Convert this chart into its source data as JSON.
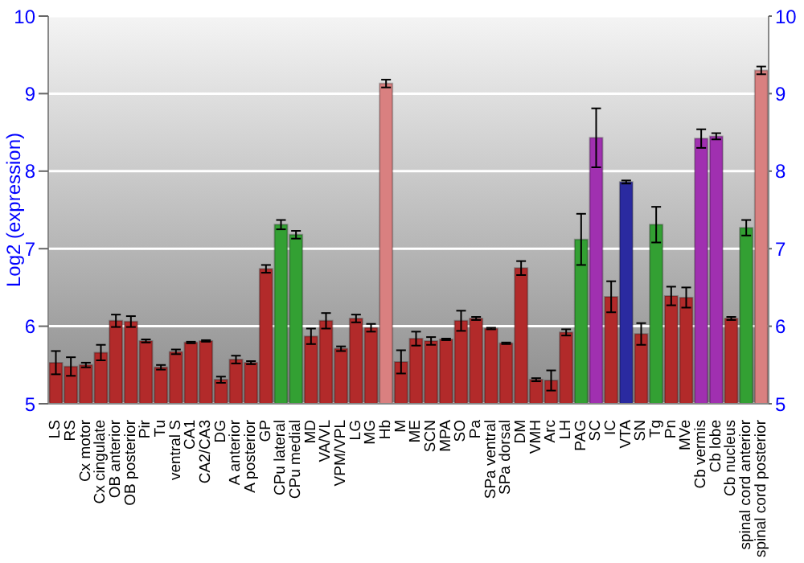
{
  "chart_data": {
    "type": "bar",
    "ylabel": "Log2 (expression)",
    "categories": [
      "LS",
      "RS",
      "Cx motor",
      "Cx cingulate",
      "OB anterior",
      "OB posterior",
      "Pir",
      "Tu",
      "ventral S",
      "CA1",
      "CA2/CA3",
      "DG",
      "A anterior",
      "A posterior",
      "GP",
      "CPu lateral",
      "CPu medial",
      "MD",
      "VA/VL",
      "VPM/VPL",
      "LG",
      "MG",
      "Hb",
      "M",
      "ME",
      "SCN",
      "MPA",
      "SO",
      "Pa",
      "SPa ventral",
      "SPa dorsal",
      "DM",
      "VMH",
      "Arc",
      "LH",
      "PAG",
      "SC",
      "IC",
      "VTA",
      "SN",
      "Tg",
      "Pn",
      "MVe",
      "Cb vermis",
      "Cb lobe",
      "Cb nucleus",
      "spinal cord anterior",
      "spinal cord posterior"
    ],
    "values": [
      5.53,
      5.48,
      5.5,
      5.66,
      6.07,
      6.06,
      5.81,
      5.47,
      5.67,
      5.79,
      5.81,
      5.31,
      5.57,
      5.53,
      6.74,
      7.31,
      7.18,
      5.87,
      6.07,
      5.71,
      6.1,
      5.98,
      9.13,
      5.54,
      5.84,
      5.81,
      5.83,
      6.07,
      6.1,
      5.97,
      5.78,
      6.75,
      5.31,
      5.3,
      5.92,
      7.12,
      8.43,
      6.38,
      7.86,
      5.9,
      7.31,
      6.39,
      6.37,
      8.42,
      8.45,
      6.1,
      7.27,
      9.3
    ],
    "errors": [
      0.15,
      0.12,
      0.03,
      0.1,
      0.08,
      0.07,
      0.02,
      0.03,
      0.03,
      0.01,
      0.01,
      0.04,
      0.05,
      0.02,
      0.05,
      0.06,
      0.05,
      0.1,
      0.1,
      0.03,
      0.05,
      0.05,
      0.05,
      0.15,
      0.09,
      0.05,
      0.01,
      0.13,
      0.02,
      0.01,
      0.01,
      0.09,
      0.02,
      0.13,
      0.04,
      0.33,
      0.38,
      0.2,
      0.02,
      0.14,
      0.23,
      0.12,
      0.13,
      0.12,
      0.04,
      0.02,
      0.1,
      0.05
    ],
    "colors": [
      "#b22a2a",
      "#b22a2a",
      "#b22a2a",
      "#b22a2a",
      "#b22a2a",
      "#b22a2a",
      "#b22a2a",
      "#b22a2a",
      "#b22a2a",
      "#b22a2a",
      "#b22a2a",
      "#b22a2a",
      "#b22a2a",
      "#b22a2a",
      "#b22a2a",
      "#33a033",
      "#33a033",
      "#b22a2a",
      "#b22a2a",
      "#b22a2a",
      "#b22a2a",
      "#b22a2a",
      "#d98080",
      "#b22a2a",
      "#b22a2a",
      "#b22a2a",
      "#b22a2a",
      "#b22a2a",
      "#b22a2a",
      "#b22a2a",
      "#b22a2a",
      "#b22a2a",
      "#b22a2a",
      "#b22a2a",
      "#b22a2a",
      "#33a033",
      "#a030b0",
      "#b22a2a",
      "#2a2aa0",
      "#b22a2a",
      "#33a033",
      "#b22a2a",
      "#b22a2a",
      "#a030b0",
      "#a030b0",
      "#b22a2a",
      "#33a033",
      "#d98080"
    ],
    "ylim": [
      5,
      10
    ],
    "yticks": [
      5,
      6,
      7,
      8,
      9,
      10
    ],
    "y2lim": [
      5,
      10
    ],
    "y2ticks": [
      5,
      6,
      7,
      8,
      9,
      10
    ],
    "grid": "y"
  }
}
